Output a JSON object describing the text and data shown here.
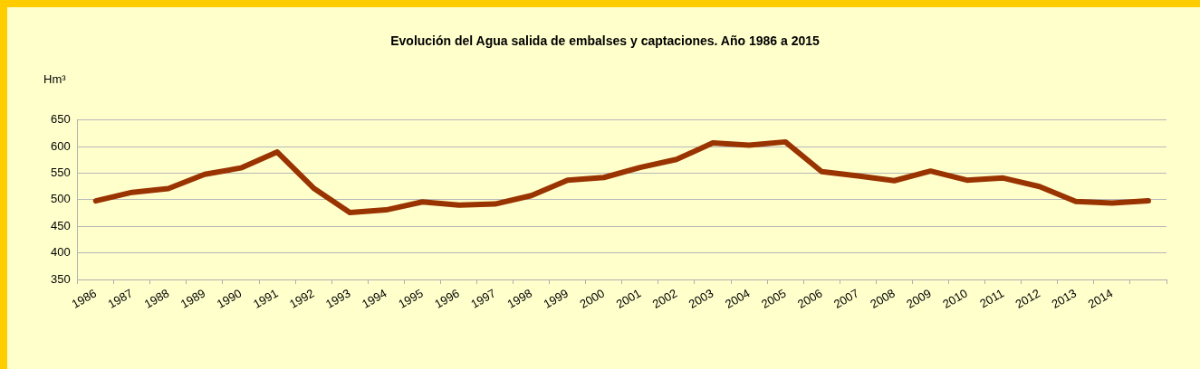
{
  "chart_data": {
    "type": "line",
    "title": "Evolución del Agua salida de embalses y captaciones. Año 1986 a 2015",
    "ylabel": "Hm³",
    "categories": [
      "1986",
      "1987",
      "1988",
      "1989",
      "1990",
      "1991",
      "1992",
      "1993",
      "1994",
      "1995",
      "1996",
      "1997",
      "1998",
      "1999",
      "2000",
      "2001",
      "2002",
      "2003",
      "2004",
      "2005",
      "2006",
      "2007",
      "2008",
      "2009",
      "2010",
      "2011",
      "2012",
      "2013",
      "2014",
      null
    ],
    "series": [
      {
        "color": "#993300",
        "values": [
          498,
          514,
          521,
          548,
          560,
          590,
          522,
          476,
          481,
          496,
          490,
          492,
          508,
          537,
          542,
          561,
          576,
          607,
          603,
          609,
          553,
          545,
          536,
          554,
          537,
          541,
          525,
          497,
          494,
          498
        ]
      }
    ],
    "ylim": [
      350,
      650
    ],
    "yticks": [
      350,
      400,
      450,
      500,
      550,
      600,
      650
    ],
    "grid": "y",
    "legend": false,
    "marker": "none",
    "line_style": "solid"
  }
}
